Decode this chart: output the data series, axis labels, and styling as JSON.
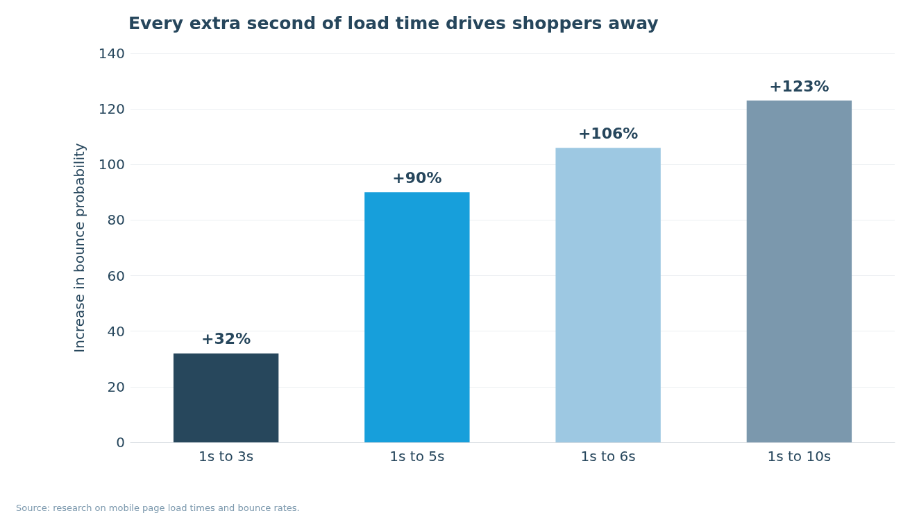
{
  "chart_data": {
    "type": "bar",
    "title": "Every extra second of load time drives shoppers away",
    "ylabel": "Increase in bounce probability",
    "categories": [
      "1s to 3s",
      "1s to 5s",
      "1s to 6s",
      "1s to 10s"
    ],
    "values": [
      32,
      90,
      106,
      123
    ],
    "colors": [
      "#27475c",
      "#179fdb",
      "#9dc8e2",
      "#7b98ad"
    ],
    "value_labels": [
      "+32%",
      "+90%",
      "+106%",
      "+123%"
    ],
    "ylim": [
      0,
      140
    ],
    "yticks": [
      0,
      20,
      40,
      60,
      80,
      100,
      120,
      140
    ],
    "grid": "y",
    "annotations": [
      "Source: research on mobile page load times and bounce rates."
    ]
  }
}
